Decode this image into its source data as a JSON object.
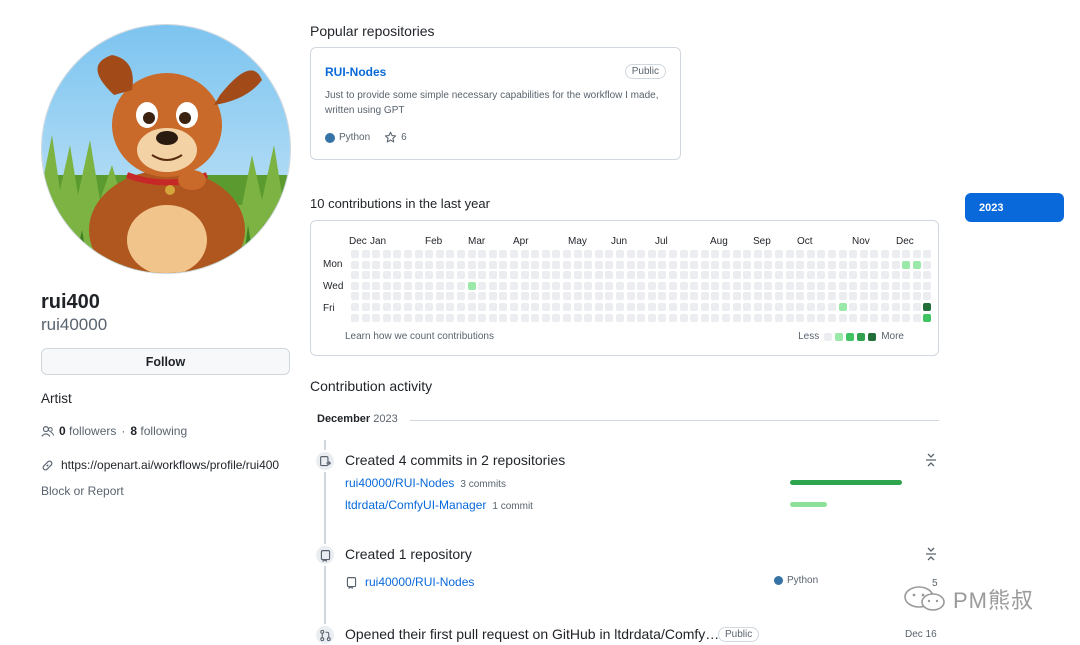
{
  "profile": {
    "display_name": "rui400",
    "login": "rui40000",
    "follow_label": "Follow",
    "bio": "Artist",
    "followers_count": "0",
    "followers_label": "followers",
    "separator": "·",
    "following_count": "8",
    "following_label": "following",
    "website": "https://openart.ai/workflows/profile/rui400",
    "block_label": "Block or Report"
  },
  "popular": {
    "heading": "Popular repositories",
    "repo": {
      "name": "RUI-Nodes",
      "visibility": "Public",
      "description": "Just to provide some simple necessary capabilities for the workflow I made, written using GPT",
      "language": "Python",
      "language_color": "#3572A5",
      "stars": "6"
    }
  },
  "contributions": {
    "heading": "10 contributions in the last year",
    "year": "2023",
    "months": [
      "Dec",
      "Jan",
      "Feb",
      "Mar",
      "Apr",
      "May",
      "Jun",
      "Jul",
      "Aug",
      "Sep",
      "Oct",
      "Nov",
      "Dec"
    ],
    "weekdays": [
      "Mon",
      "Wed",
      "Fri"
    ],
    "learn_label": "Learn how we count contributions",
    "less_label": "Less",
    "more_label": "More",
    "level_colors": [
      "#ebedf0",
      "#9be9a8",
      "#40c463",
      "#30a14e",
      "#216e39"
    ],
    "active_cells": [
      {
        "week": 11,
        "day": 3,
        "level": 1
      },
      {
        "week": 46,
        "day": 5,
        "level": 1
      },
      {
        "week": 52,
        "day": 1,
        "level": 1
      },
      {
        "week": 53,
        "day": 1,
        "level": 1
      },
      {
        "week": 54,
        "day": 5,
        "level": 4
      },
      {
        "week": 54,
        "day": 6,
        "level": 2
      }
    ]
  },
  "activity": {
    "heading": "Contribution activity",
    "month": "December",
    "year": "2023",
    "commits": {
      "title": "Created 4 commits in 2 repositories",
      "rows": [
        {
          "repo": "rui40000/RUI-Nodes",
          "count": "3 commits",
          "bar_fraction": 1.0,
          "bar_color": "#2da44e"
        },
        {
          "repo": "ltdrdata/ComfyUI-Manager",
          "count": "1 commit",
          "bar_fraction": 0.33,
          "bar_color": "#8ce099"
        }
      ]
    },
    "repos": {
      "title": "Created 1 repository",
      "repo": "rui40000/RUI-Nodes",
      "language": "Python",
      "language_color": "#3572A5",
      "date_partial": "5"
    },
    "pr": {
      "title": "Opened their first pull request on GitHub in ltdrdata/Comfy…",
      "badge": "Public",
      "date": "Dec 16"
    }
  },
  "watermark": {
    "text": "PM熊叔"
  }
}
